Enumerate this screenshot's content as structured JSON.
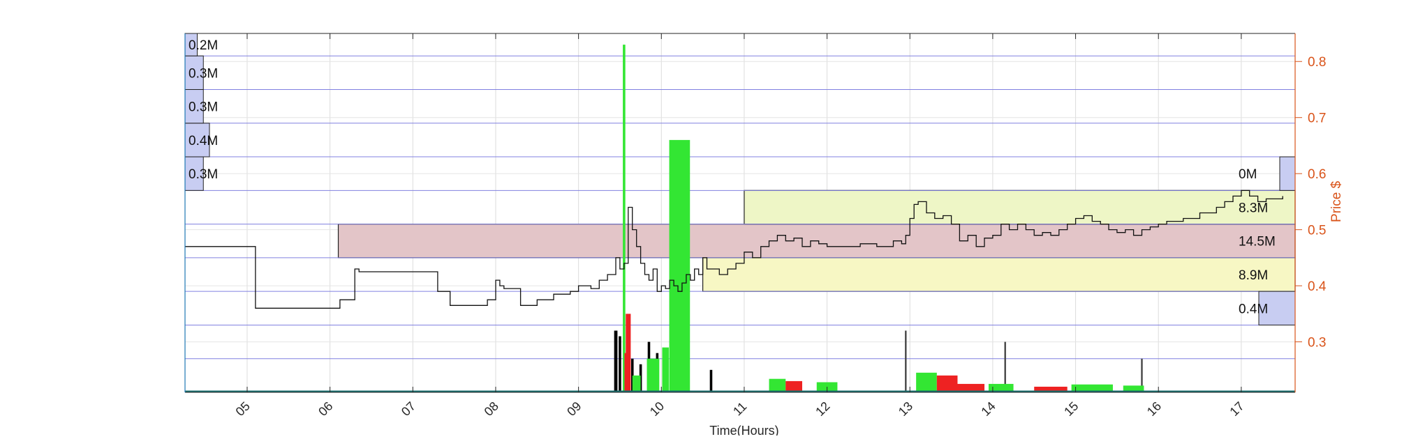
{
  "chart_data": {
    "type": "line",
    "title": "",
    "xlabel": "Time(Hours)",
    "ylabel": "Price $",
    "xlim": [
      4.25,
      17.65
    ],
    "ylim": [
      0.21,
      0.85
    ],
    "x_ticks": [
      5,
      6,
      7,
      8,
      9,
      10,
      11,
      12,
      13,
      14,
      15,
      16,
      17
    ],
    "x_tick_labels": [
      "05",
      "06",
      "07",
      "08",
      "09",
      "10",
      "11",
      "12",
      "13",
      "14",
      "15",
      "16",
      "17"
    ],
    "y_ticks": [
      0.3,
      0.4,
      0.5,
      0.6,
      0.7,
      0.8
    ],
    "y_tick_labels": [
      "0.3",
      "0.4",
      "0.5",
      "0.6",
      "0.7",
      "0.8"
    ],
    "price_bins": [
      0.27,
      0.33,
      0.39,
      0.45,
      0.51,
      0.57,
      0.63,
      0.69,
      0.75,
      0.81,
      0.85
    ],
    "volume_profile_left": [
      {
        "low": 0.57,
        "high": 0.63,
        "volume_m": 0.3,
        "label": "0.3M"
      },
      {
        "low": 0.63,
        "high": 0.69,
        "volume_m": 0.4,
        "label": "0.4M"
      },
      {
        "low": 0.69,
        "high": 0.75,
        "volume_m": 0.3,
        "label": "0.3M"
      },
      {
        "low": 0.75,
        "high": 0.81,
        "volume_m": 0.3,
        "label": "0.3M"
      },
      {
        "low": 0.81,
        "high": 0.85,
        "volume_m": 0.2,
        "label": "0.2M"
      }
    ],
    "volume_profile_right": [
      {
        "low": 0.33,
        "high": 0.39,
        "volume_m": 0.4,
        "label": "0.4M"
      },
      {
        "low": 0.39,
        "high": 0.45,
        "volume_m": 8.9,
        "label": "8.9M"
      },
      {
        "low": 0.45,
        "high": 0.51,
        "volume_m": 14.5,
        "label": "14.5M"
      },
      {
        "low": 0.51,
        "high": 0.57,
        "volume_m": 8.3,
        "label": "8.3M"
      },
      {
        "low": 0.57,
        "high": 0.63,
        "volume_m": 0.0,
        "label": "0M"
      }
    ],
    "zones": [
      {
        "x_start": 10.5,
        "x_end": 17.65,
        "low": 0.39,
        "high": 0.45,
        "color": "#f7f7c4"
      },
      {
        "x_start": 6.1,
        "x_end": 17.65,
        "low": 0.45,
        "high": 0.51,
        "color": "#e3c5c8"
      },
      {
        "x_start": 11.0,
        "x_end": 17.65,
        "low": 0.51,
        "high": 0.57,
        "color": "#eef6c6"
      }
    ],
    "price_series": {
      "name": "",
      "x": [
        4.25,
        5.08,
        5.1,
        6.1,
        6.12,
        6.2,
        6.3,
        6.35,
        6.5,
        6.8,
        7.0,
        7.3,
        7.45,
        7.6,
        7.9,
        8.0,
        8.05,
        8.1,
        8.3,
        8.5,
        8.7,
        8.9,
        9.0,
        9.15,
        9.25,
        9.35,
        9.45,
        9.5,
        9.55,
        9.6,
        9.65,
        9.7,
        9.75,
        9.8,
        9.85,
        9.9,
        9.95,
        10.0,
        10.05,
        10.1,
        10.15,
        10.2,
        10.25,
        10.3,
        10.35,
        10.4,
        10.45,
        10.5,
        10.55,
        10.6,
        10.7,
        10.8,
        10.9,
        11.0,
        11.1,
        11.2,
        11.3,
        11.4,
        11.5,
        11.6,
        11.7,
        11.8,
        11.9,
        12.0,
        12.2,
        12.4,
        12.6,
        12.8,
        12.9,
        12.95,
        13.0,
        13.05,
        13.1,
        13.2,
        13.3,
        13.4,
        13.5,
        13.6,
        13.7,
        13.8,
        13.9,
        14.0,
        14.1,
        14.2,
        14.3,
        14.4,
        14.5,
        14.6,
        14.7,
        14.8,
        14.9,
        15.0,
        15.1,
        15.2,
        15.3,
        15.4,
        15.5,
        15.6,
        15.7,
        15.8,
        15.9,
        16.0,
        16.1,
        16.3,
        16.5,
        16.6,
        16.7,
        16.8,
        16.9,
        17.0,
        17.1,
        17.2,
        17.3,
        17.4,
        17.5
      ],
      "y": [
        0.47,
        0.47,
        0.36,
        0.36,
        0.375,
        0.375,
        0.43,
        0.425,
        0.425,
        0.425,
        0.425,
        0.39,
        0.365,
        0.365,
        0.375,
        0.41,
        0.4,
        0.395,
        0.365,
        0.375,
        0.385,
        0.39,
        0.4,
        0.395,
        0.41,
        0.42,
        0.45,
        0.43,
        0.44,
        0.54,
        0.5,
        0.47,
        0.44,
        0.42,
        0.41,
        0.43,
        0.39,
        0.4,
        0.395,
        0.41,
        0.4,
        0.39,
        0.405,
        0.42,
        0.41,
        0.43,
        0.42,
        0.45,
        0.43,
        0.43,
        0.42,
        0.43,
        0.44,
        0.46,
        0.45,
        0.47,
        0.48,
        0.49,
        0.48,
        0.485,
        0.47,
        0.48,
        0.475,
        0.47,
        0.47,
        0.475,
        0.47,
        0.48,
        0.475,
        0.49,
        0.52,
        0.545,
        0.55,
        0.53,
        0.52,
        0.525,
        0.51,
        0.48,
        0.49,
        0.47,
        0.485,
        0.49,
        0.51,
        0.5,
        0.51,
        0.5,
        0.49,
        0.495,
        0.49,
        0.5,
        0.51,
        0.52,
        0.525,
        0.515,
        0.51,
        0.5,
        0.495,
        0.5,
        0.49,
        0.5,
        0.505,
        0.51,
        0.515,
        0.52,
        0.53,
        0.53,
        0.54,
        0.55,
        0.56,
        0.57,
        0.56,
        0.55,
        0.555,
        0.555,
        0.56
      ]
    },
    "volume_bars": {
      "name": "",
      "bars": [
        {
          "x": 9.55,
          "width": 0.03,
          "height": 0.83,
          "color": "#33e633"
        },
        {
          "x": 10.22,
          "width": 0.25,
          "height": 0.66,
          "color": "#33e633"
        },
        {
          "x": 9.6,
          "width": 0.06,
          "height": 0.35,
          "color": "#ee2222"
        },
        {
          "x": 9.58,
          "width": 0.05,
          "height": 0.28,
          "color": "#ee2222"
        },
        {
          "x": 9.9,
          "width": 0.15,
          "height": 0.27,
          "color": "#33e633"
        },
        {
          "x": 10.05,
          "width": 0.08,
          "height": 0.29,
          "color": "#33e633"
        },
        {
          "x": 9.7,
          "width": 0.1,
          "height": 0.24,
          "color": "#33e633"
        },
        {
          "x": 9.45,
          "width": 0.04,
          "height": 0.32,
          "color": "#000000"
        },
        {
          "x": 9.5,
          "width": 0.03,
          "height": 0.31,
          "color": "#000000"
        },
        {
          "x": 9.85,
          "width": 0.03,
          "height": 0.3,
          "color": "#000000"
        },
        {
          "x": 9.95,
          "width": 0.03,
          "height": 0.28,
          "color": "#000000"
        },
        {
          "x": 9.65,
          "width": 0.03,
          "height": 0.27,
          "color": "#000000"
        },
        {
          "x": 9.75,
          "width": 0.03,
          "height": 0.26,
          "color": "#000000"
        },
        {
          "x": 10.6,
          "width": 0.03,
          "height": 0.25,
          "color": "#000000"
        },
        {
          "x": 12.95,
          "width": 0.02,
          "height": 0.32,
          "color": "#444444"
        },
        {
          "x": 14.15,
          "width": 0.02,
          "height": 0.3,
          "color": "#444444"
        },
        {
          "x": 15.8,
          "width": 0.02,
          "height": 0.27,
          "color": "#444444"
        },
        {
          "x": 11.4,
          "width": 0.2,
          "height": 0.234,
          "color": "#33e633"
        },
        {
          "x": 11.6,
          "width": 0.2,
          "height": 0.23,
          "color": "#ee2222"
        },
        {
          "x": 12.0,
          "width": 0.25,
          "height": 0.228,
          "color": "#33e633"
        },
        {
          "x": 13.2,
          "width": 0.25,
          "height": 0.245,
          "color": "#33e633"
        },
        {
          "x": 13.45,
          "width": 0.25,
          "height": 0.24,
          "color": "#ee2222"
        },
        {
          "x": 13.7,
          "width": 0.4,
          "height": 0.225,
          "color": "#ee2222"
        },
        {
          "x": 14.1,
          "width": 0.3,
          "height": 0.225,
          "color": "#33e633"
        },
        {
          "x": 14.7,
          "width": 0.4,
          "height": 0.22,
          "color": "#ee2222"
        },
        {
          "x": 15.2,
          "width": 0.5,
          "height": 0.224,
          "color": "#33e633"
        },
        {
          "x": 15.7,
          "width": 0.25,
          "height": 0.222,
          "color": "#33e633"
        }
      ]
    },
    "grid": true,
    "legend": "none"
  }
}
